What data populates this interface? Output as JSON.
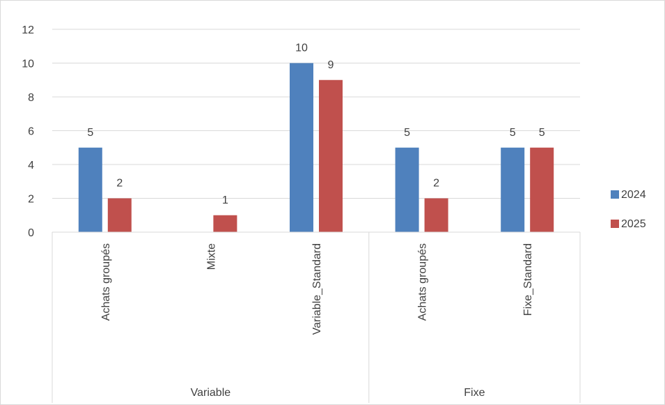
{
  "chart_data": {
    "type": "bar",
    "title": "",
    "xlabel": "",
    "ylabel": "",
    "ylim": [
      0,
      12
    ],
    "yticks": [
      0,
      2,
      4,
      6,
      8,
      10,
      12
    ],
    "grid": true,
    "legend_position": "right",
    "groups": [
      {
        "label": "Variable",
        "categories": [
          "Achats groupés",
          "Mixte",
          "Variable_Standard"
        ]
      },
      {
        "label": "Fixe",
        "categories": [
          "Achats groupés",
          "Fixe_Standard"
        ]
      }
    ],
    "categories": [
      "Achats groupés",
      "Mixte",
      "Variable_Standard",
      "Achats groupés",
      "Fixe_Standard"
    ],
    "series": [
      {
        "name": "2024",
        "color": "#4f81bd",
        "values": [
          5,
          null,
          10,
          5,
          5
        ]
      },
      {
        "name": "2025",
        "color": "#c0504d",
        "values": [
          2,
          1,
          9,
          2,
          5
        ]
      }
    ]
  }
}
